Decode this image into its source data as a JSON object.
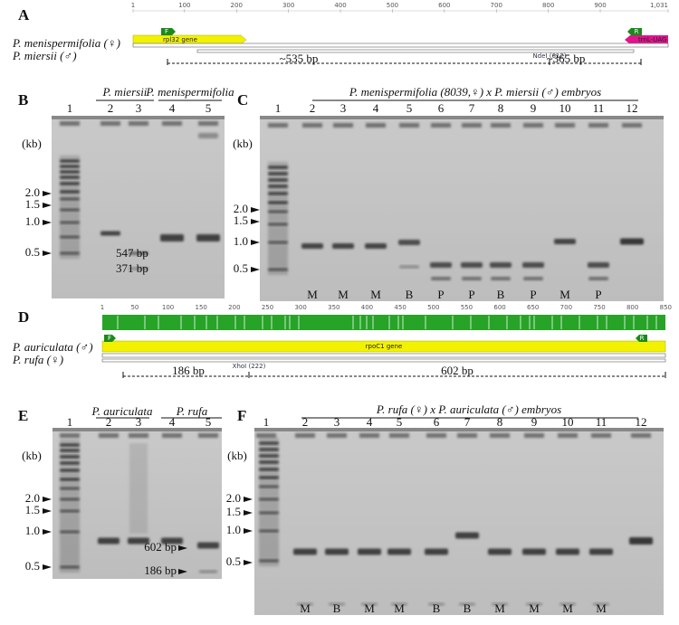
{
  "panel_a": {
    "letter": "A",
    "ruler": [
      "1",
      "100",
      "200",
      "300",
      "400",
      "500",
      "600",
      "700",
      "800",
      "900",
      "1,031"
    ],
    "female_species": "P. menispermifolia (♀)",
    "male_species": "P. miersii (♂)",
    "primer_f": "F",
    "primer_r": "R",
    "gene": "rpl32 gene",
    "trna": "trnL-UAG",
    "site": "NdeI (612)",
    "fragment_1": "~535 bp",
    "fragment_2": "~365 bp"
  },
  "panel_b": {
    "letter": "B",
    "unit": "(kb)",
    "lanes": [
      "1",
      "2",
      "3",
      "4",
      "5"
    ],
    "group_1": "P. miersii",
    "group_2": "P. menispermifolia",
    "ladder": [
      "2.0",
      "1.5",
      "1.0",
      "0.5"
    ],
    "band_labels": [
      "547 bp",
      "371 bp"
    ]
  },
  "panel_c": {
    "letter": "C",
    "unit": "(kb)",
    "title": "P. menispermifolia (8039,♀) x P. miersii (♂) embryos",
    "lanes": [
      "1",
      "2",
      "3",
      "4",
      "5",
      "6",
      "7",
      "8",
      "9",
      "10",
      "11",
      "12"
    ],
    "ladder": [
      "2.0",
      "1.5",
      "1.0",
      "0.5"
    ],
    "genotypes": [
      "M",
      "M",
      "M",
      "B",
      "P",
      "P",
      "B",
      "P",
      "M",
      "P"
    ]
  },
  "panel_d": {
    "letter": "D",
    "ruler": [
      "1",
      "50",
      "100",
      "150",
      "200",
      "250",
      "300",
      "350",
      "400",
      "450",
      "500",
      "550",
      "600",
      "650",
      "700",
      "750",
      "800",
      "850"
    ],
    "male_species": "P. auriculata (♂)",
    "female_species": "P. rufa (♀)",
    "primer_f": "F",
    "primer_r": "R",
    "gene": "rpoC1 gene",
    "site": "XhoI (222)",
    "fragment_1": "186 bp",
    "fragment_2": "602 bp"
  },
  "panel_e": {
    "letter": "E",
    "unit": "(kb)",
    "lanes": [
      "1",
      "2",
      "3",
      "4",
      "5"
    ],
    "group_1": "P. auriculata",
    "group_2": "P. rufa",
    "ladder": [
      "2.0",
      "1.5",
      "1.0",
      "0.5"
    ],
    "band_labels": [
      "602 bp",
      "186 bp"
    ]
  },
  "panel_f": {
    "letter": "F",
    "unit": "(kb)",
    "title": "P. rufa (♀) x P. auriculata (♂) embryos",
    "lanes": [
      "1",
      "2",
      "3",
      "4",
      "5",
      "6",
      "7",
      "8",
      "9",
      "10",
      "11",
      "12"
    ],
    "ladder": [
      "2.0",
      "1.5",
      "1.0",
      "0.5"
    ],
    "genotypes": [
      "M",
      "B",
      "M",
      "M",
      "B",
      "B",
      "M",
      "M",
      "M",
      "M"
    ]
  }
}
